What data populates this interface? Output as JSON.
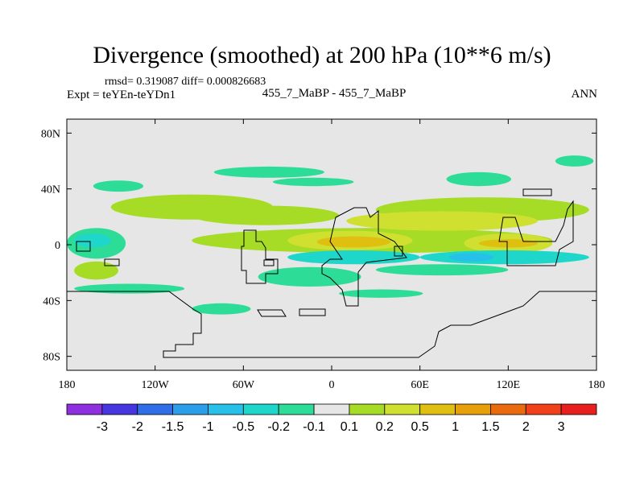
{
  "header": {
    "title": "Divergence (smoothed) at 200 hPa (10**6 m/s)",
    "rmsd": "rmsd= 0.319087 diff= 0.000826683",
    "experiment": "Expt = teYEn-teYDn1",
    "comparison": "455_7_MaBP - 455_7_MaBP",
    "season": "ANN"
  },
  "chart_data": {
    "type": "heatmap",
    "title": "Divergence (smoothed) at 200 hPa (10**6 m/s)",
    "xlabel": "",
    "ylabel": "",
    "xlim": [
      -180,
      180
    ],
    "ylim": [
      -90,
      90
    ],
    "x_ticks": [
      {
        "value": -180,
        "label": "180"
      },
      {
        "value": -120,
        "label": "120W"
      },
      {
        "value": -60,
        "label": "60W"
      },
      {
        "value": 0,
        "label": "0"
      },
      {
        "value": 60,
        "label": "60E"
      },
      {
        "value": 120,
        "label": "120E"
      },
      {
        "value": 180,
        "label": "180"
      }
    ],
    "y_ticks": [
      {
        "value": 80,
        "label": "80N"
      },
      {
        "value": 40,
        "label": "40N"
      },
      {
        "value": 0,
        "label": "0"
      },
      {
        "value": -40,
        "label": "40S"
      },
      {
        "value": -80,
        "label": "80S"
      }
    ],
    "colorbar": {
      "levels": [
        "-3",
        "-2",
        "-1.5",
        "-1",
        "-0.5",
        "-0.2",
        "-0.1",
        "0.1",
        "0.2",
        "0.5",
        "1",
        "1.5",
        "2",
        "3"
      ],
      "colors": [
        "#8f30e0",
        "#4636e0",
        "#2f6ee6",
        "#2a9ee8",
        "#26c0e8",
        "#1ed7ca",
        "#2ddc96",
        "#e6e6e6",
        "#a6dc26",
        "#cfe030",
        "#dfbf10",
        "#e7a00a",
        "#ea6a0e",
        "#f0411a",
        "#e81f1f"
      ]
    },
    "regions": [
      {
        "class": 6,
        "lon": [
          -80,
          -5
        ],
        "lat": [
          48,
          56
        ]
      },
      {
        "class": 6,
        "lon": [
          -40,
          15
        ],
        "lat": [
          42,
          48
        ]
      },
      {
        "class": 6,
        "lon": [
          -162,
          -128
        ],
        "lat": [
          38,
          46
        ]
      },
      {
        "class": 6,
        "lon": [
          78,
          122
        ],
        "lat": [
          42,
          52
        ]
      },
      {
        "class": 6,
        "lon": [
          152,
          178
        ],
        "lat": [
          56,
          64
        ]
      },
      {
        "class": 8,
        "lon": [
          -150,
          -40
        ],
        "lat": [
          18,
          36
        ]
      },
      {
        "class": 8,
        "lon": [
          -95,
          5
        ],
        "lat": [
          14,
          28
        ]
      },
      {
        "class": 8,
        "lon": [
          30,
          175
        ],
        "lat": [
          16,
          34
        ]
      },
      {
        "class": 8,
        "lon": [
          -175,
          -145
        ],
        "lat": [
          -25,
          -12
        ]
      },
      {
        "class": 8,
        "lon": [
          -95,
          150
        ],
        "lat": [
          -6,
          12
        ]
      },
      {
        "class": 9,
        "lon": [
          10,
          140
        ],
        "lat": [
          10,
          24
        ]
      },
      {
        "class": 9,
        "lon": [
          -30,
          55
        ],
        "lat": [
          -4,
          10
        ]
      },
      {
        "class": 9,
        "lon": [
          90,
          150
        ],
        "lat": [
          -6,
          8
        ]
      },
      {
        "class": 10,
        "lon": [
          -10,
          40
        ],
        "lat": [
          -2,
          6
        ]
      },
      {
        "class": 10,
        "lon": [
          100,
          140
        ],
        "lat": [
          -2,
          4
        ]
      },
      {
        "class": 6,
        "lon": [
          -180,
          -140
        ],
        "lat": [
          -10,
          12
        ]
      },
      {
        "class": 6,
        "lon": [
          -50,
          20
        ],
        "lat": [
          -30,
          -16
        ]
      },
      {
        "class": 6,
        "lon": [
          30,
          120
        ],
        "lat": [
          -22,
          -14
        ]
      },
      {
        "class": 6,
        "lon": [
          -175,
          -100
        ],
        "lat": [
          -35,
          -28
        ]
      },
      {
        "class": 6,
        "lon": [
          -95,
          -55
        ],
        "lat": [
          -50,
          -42
        ]
      },
      {
        "class": 6,
        "lon": [
          5,
          62
        ],
        "lat": [
          -38,
          -32
        ]
      },
      {
        "class": 5,
        "lon": [
          -30,
          60
        ],
        "lat": [
          -14,
          -4
        ]
      },
      {
        "class": 5,
        "lon": [
          60,
          175
        ],
        "lat": [
          -14,
          -4
        ]
      },
      {
        "class": 4,
        "lon": [
          80,
          110
        ],
        "lat": [
          -12,
          -6
        ]
      },
      {
        "class": 5,
        "lon": [
          -175,
          -150
        ],
        "lat": [
          -2,
          8
        ]
      }
    ]
  }
}
